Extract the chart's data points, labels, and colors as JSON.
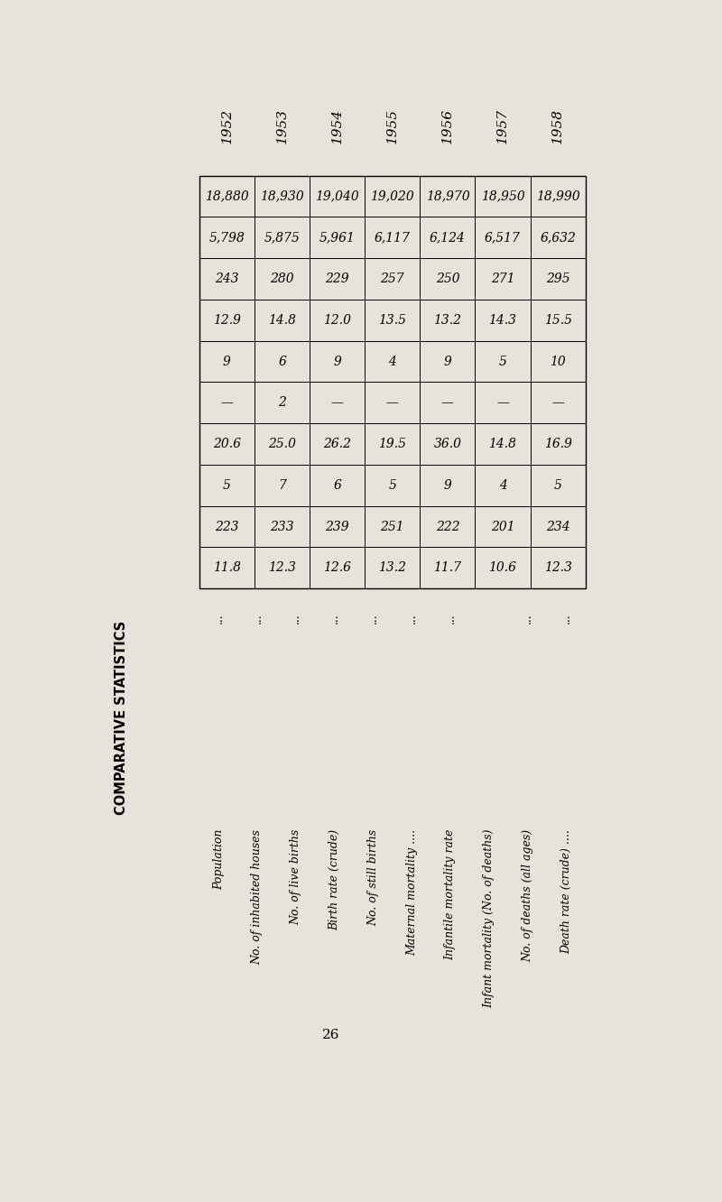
{
  "title": "COMPARATIVE STATISTICS",
  "page_number": "26",
  "background_color": "#e8e3d8",
  "columns": [
    "1952",
    "1953",
    "1954",
    "1955",
    "1956",
    "1957",
    "1958"
  ],
  "row_labels": [
    "Population",
    "No. of inhabited houses",
    "No. of live births",
    "Birth rate (crude)",
    "No. of still births",
    "Maternal mortality ....",
    "Infantile mortality rate",
    "Infant mortality (No. of deaths)",
    "No. of deaths (all ages)",
    "Death rate (crude) ...."
  ],
  "row_dots": [
    "...",
    "...",
    "...",
    "...",
    "...",
    "...",
    "...",
    "",
    "...",
    "..."
  ],
  "row_label_dots": [
    "...",
    "...",
    "...",
    "...",
    "...",
    "...",
    "",
    "",
    "...",
    "..."
  ],
  "values": [
    [
      "18,880",
      "18,930",
      "19,040",
      "19,020",
      "18,970",
      "18,950",
      "18,990"
    ],
    [
      "5,798",
      "5,875",
      "5,961",
      "6,117",
      "6,124",
      "6,517",
      "6,632"
    ],
    [
      "243",
      "280",
      "229",
      "257",
      "250",
      "271",
      "295"
    ],
    [
      "12.9",
      "14.8",
      "12.0",
      "13.5",
      "13.2",
      "14.3",
      "15.5"
    ],
    [
      "9",
      "6",
      "9",
      "4",
      "9",
      "5",
      "10"
    ],
    [
      "—",
      "2",
      "—",
      "—",
      "—",
      "—",
      "—"
    ],
    [
      "20.6",
      "25.0",
      "26.2",
      "19.5",
      "36.0",
      "14.8",
      "16.9"
    ],
    [
      "5",
      "7",
      "6",
      "5",
      "9",
      "4",
      "5"
    ],
    [
      "223",
      "233",
      "239",
      "251",
      "222",
      "201",
      "234"
    ],
    [
      "11.8",
      "12.3",
      "12.6",
      "13.2",
      "11.7",
      "10.6",
      "12.3"
    ]
  ]
}
